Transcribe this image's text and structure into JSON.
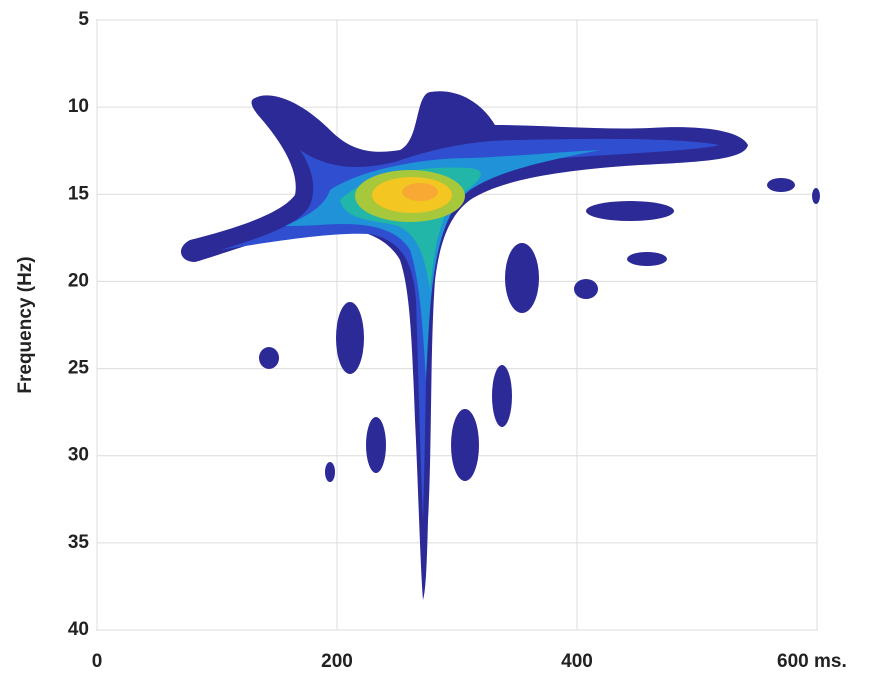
{
  "chart_data": {
    "type": "contour",
    "ylabel": "Frequency (Hz)",
    "xlim": [
      0,
      600
    ],
    "xticks": [
      0,
      200,
      400,
      {
        "value": 600,
        "label": "600 ms."
      }
    ],
    "ylim": [
      5,
      40
    ],
    "yticks": [
      5,
      10,
      15,
      20,
      25,
      30,
      35,
      40
    ],
    "y_inverted": true,
    "grid": true
  }
}
